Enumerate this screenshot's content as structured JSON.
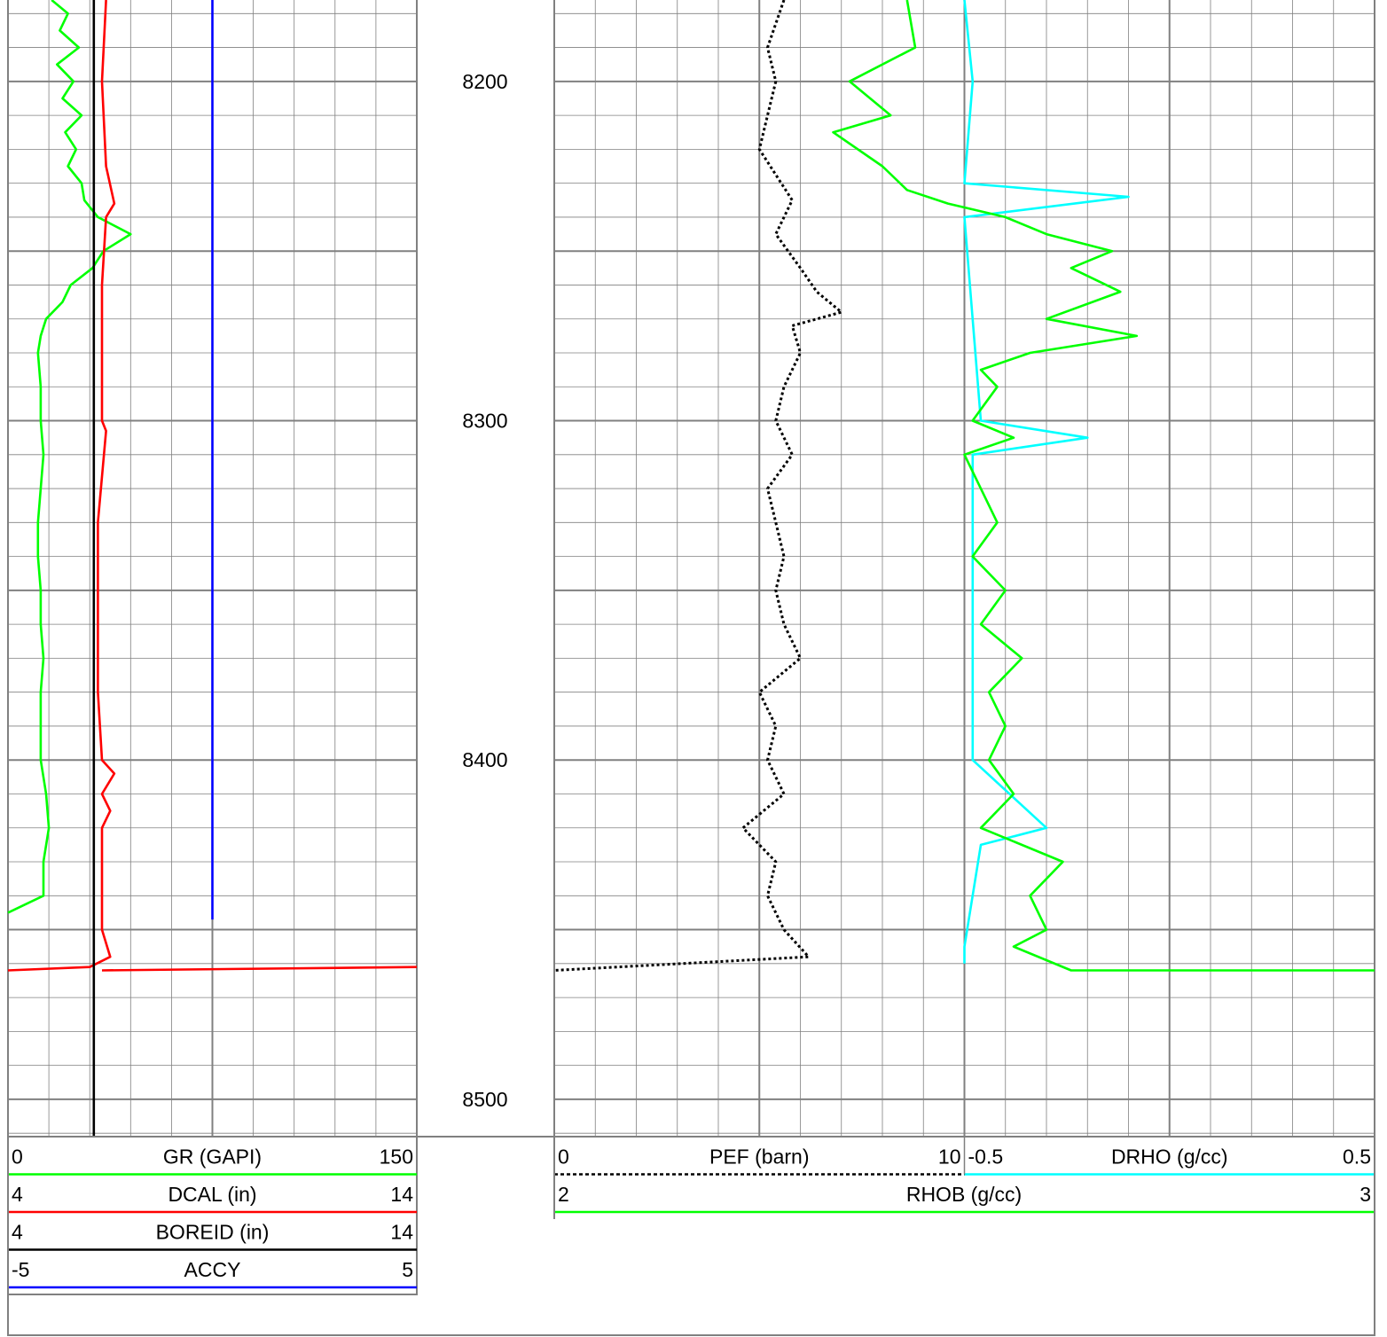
{
  "chart_data": {
    "type": "line",
    "title": "",
    "depth_axis": {
      "min": 8176,
      "max": 8511,
      "ticks": [
        8200,
        8300,
        8400,
        8500
      ],
      "major_step": 50,
      "minor_step": 10
    },
    "tracks": [
      {
        "name": "track1",
        "grid_divisions": 10,
        "curves": [
          {
            "mnemonic": "GR",
            "unit": "GAPI",
            "label": "GR (GAPI)",
            "min": 0,
            "max": 150,
            "min_label": "0",
            "max_label": "150",
            "color": "#00ff00",
            "style": "solid",
            "points": [
              [
                8176,
                16
              ],
              [
                8180,
                22
              ],
              [
                8185,
                19
              ],
              [
                8190,
                26
              ],
              [
                8195,
                18
              ],
              [
                8200,
                24
              ],
              [
                8205,
                20
              ],
              [
                8210,
                27
              ],
              [
                8215,
                21
              ],
              [
                8220,
                25
              ],
              [
                8225,
                22
              ],
              [
                8230,
                27
              ],
              [
                8235,
                28
              ],
              [
                8240,
                33
              ],
              [
                8245,
                45
              ],
              [
                8250,
                35
              ],
              [
                8255,
                31
              ],
              [
                8260,
                23
              ],
              [
                8265,
                20
              ],
              [
                8270,
                14
              ],
              [
                8275,
                12
              ],
              [
                8280,
                11
              ],
              [
                8290,
                12
              ],
              [
                8300,
                12
              ],
              [
                8310,
                13
              ],
              [
                8320,
                12
              ],
              [
                8330,
                11
              ],
              [
                8340,
                11
              ],
              [
                8350,
                12
              ],
              [
                8360,
                12
              ],
              [
                8370,
                13
              ],
              [
                8380,
                12
              ],
              [
                8390,
                12
              ],
              [
                8400,
                12
              ],
              [
                8410,
                14
              ],
              [
                8420,
                15
              ],
              [
                8430,
                13
              ],
              [
                8440,
                13
              ],
              [
                8445,
                0
              ]
            ]
          },
          {
            "mnemonic": "DCAL",
            "unit": "in",
            "label": "DCAL (in)",
            "min": 4,
            "max": 14,
            "min_label": "4",
            "max_label": "14",
            "color": "#ff0000",
            "style": "solid",
            "points": [
              [
                8176,
                6.4
              ],
              [
                8200,
                6.3
              ],
              [
                8225,
                6.4
              ],
              [
                8236,
                6.6
              ],
              [
                8240,
                6.4
              ],
              [
                8260,
                6.3
              ],
              [
                8300,
                6.3
              ],
              [
                8303,
                6.4
              ],
              [
                8330,
                6.2
              ],
              [
                8380,
                6.2
              ],
              [
                8400,
                6.3
              ],
              [
                8404,
                6.6
              ],
              [
                8410,
                6.3
              ],
              [
                8415,
                6.5
              ],
              [
                8420,
                6.3
              ],
              [
                8450,
                6.3
              ],
              [
                8458,
                6.5
              ],
              [
                8461,
                6.0
              ],
              [
                8462,
                4.0
              ]
            ],
            "points_2": [
              [
                8462,
                6.3
              ],
              [
                8461,
                14
              ]
            ]
          },
          {
            "mnemonic": "BOREID",
            "unit": "in",
            "label": "BOREID (in)",
            "min": 4,
            "max": 14,
            "min_label": "4",
            "max_label": "14",
            "color": "#000000",
            "style": "solid",
            "points": [
              [
                8176,
                6.1
              ],
              [
                8511,
                6.1
              ]
            ]
          },
          {
            "mnemonic": "ACCY",
            "unit": "",
            "label": "ACCY",
            "min": -5,
            "max": 5,
            "min_label": "-5",
            "max_label": "5",
            "color": "#0000ff",
            "style": "solid",
            "points": [
              [
                8176,
                0
              ],
              [
                8200,
                0
              ],
              [
                8250,
                0
              ],
              [
                8300,
                0
              ],
              [
                8350,
                0
              ],
              [
                8400,
                0
              ],
              [
                8447,
                0
              ]
            ]
          }
        ]
      },
      {
        "name": "track2",
        "grid_divisions": 20,
        "curves": [
          {
            "mnemonic": "PEF",
            "unit": "barn",
            "label": "PEF (barn)",
            "min": 0,
            "max": 10,
            "min_label": "0",
            "max_label": "10",
            "color": "#000000",
            "style": "dotted",
            "points": [
              [
                8176,
                2.8
              ],
              [
                8190,
                2.6
              ],
              [
                8200,
                2.7
              ],
              [
                8210,
                2.6
              ],
              [
                8220,
                2.5
              ],
              [
                8235,
                2.9
              ],
              [
                8245,
                2.7
              ],
              [
                8255,
                3.0
              ],
              [
                8262,
                3.2
              ],
              [
                8268,
                3.5
              ],
              [
                8272,
                2.9
              ],
              [
                8280,
                3.0
              ],
              [
                8290,
                2.8
              ],
              [
                8300,
                2.7
              ],
              [
                8310,
                2.9
              ],
              [
                8320,
                2.6
              ],
              [
                8330,
                2.7
              ],
              [
                8340,
                2.8
              ],
              [
                8350,
                2.7
              ],
              [
                8360,
                2.8
              ],
              [
                8370,
                3.0
              ],
              [
                8380,
                2.5
              ],
              [
                8390,
                2.7
              ],
              [
                8400,
                2.6
              ],
              [
                8410,
                2.8
              ],
              [
                8420,
                2.3
              ],
              [
                8430,
                2.7
              ],
              [
                8440,
                2.6
              ],
              [
                8450,
                2.8
              ],
              [
                8458,
                3.1
              ],
              [
                8462,
                0
              ]
            ]
          },
          {
            "mnemonic": "DRHO",
            "unit": "g/cc",
            "label": "DRHO (g/cc)",
            "min": -0.5,
            "max": 0.5,
            "min_label": "-0.5",
            "max_label": "0.5",
            "color": "#00ffff",
            "style": "solid",
            "points": [
              [
                8176,
                0.0
              ],
              [
                8200,
                0.01
              ],
              [
                8230,
                0.0
              ],
              [
                8234,
                0.2
              ],
              [
                8240,
                0.0
              ],
              [
                8300,
                0.02
              ],
              [
                8305,
                0.15
              ],
              [
                8310,
                0.01
              ],
              [
                8350,
                0.01
              ],
              [
                8400,
                0.01
              ],
              [
                8420,
                0.1
              ],
              [
                8425,
                0.02
              ],
              [
                8455,
                0.0
              ],
              [
                8460,
                0.0
              ]
            ]
          },
          {
            "mnemonic": "RHOB",
            "unit": "g/cc",
            "label": "RHOB (g/cc)",
            "min": 2,
            "max": 3,
            "min_label": "2",
            "max_label": "3",
            "color": "#00ff00",
            "style": "solid",
            "points": [
              [
                8176,
                2.43
              ],
              [
                8190,
                2.44
              ],
              [
                8200,
                2.36
              ],
              [
                8210,
                2.41
              ],
              [
                8215,
                2.34
              ],
              [
                8225,
                2.4
              ],
              [
                8232,
                2.43
              ],
              [
                8236,
                2.48
              ],
              [
                8240,
                2.55
              ],
              [
                8245,
                2.6
              ],
              [
                8250,
                2.68
              ],
              [
                8255,
                2.63
              ],
              [
                8262,
                2.69
              ],
              [
                8270,
                2.6
              ],
              [
                8275,
                2.71
              ],
              [
                8280,
                2.58
              ],
              [
                8285,
                2.52
              ],
              [
                8290,
                2.54
              ],
              [
                8300,
                2.51
              ],
              [
                8305,
                2.56
              ],
              [
                8310,
                2.5
              ],
              [
                8320,
                2.52
              ],
              [
                8330,
                2.54
              ],
              [
                8340,
                2.51
              ],
              [
                8350,
                2.55
              ],
              [
                8360,
                2.52
              ],
              [
                8370,
                2.57
              ],
              [
                8380,
                2.53
              ],
              [
                8390,
                2.55
              ],
              [
                8400,
                2.53
              ],
              [
                8410,
                2.56
              ],
              [
                8420,
                2.52
              ],
              [
                8430,
                2.62
              ],
              [
                8440,
                2.58
              ],
              [
                8450,
                2.6
              ],
              [
                8455,
                2.56
              ],
              [
                8462,
                2.63
              ],
              [
                8462,
                3.0
              ]
            ]
          }
        ]
      }
    ],
    "depth_labels": [
      "8200",
      "8300",
      "8400",
      "8500"
    ]
  },
  "headers": {
    "track1": [
      {
        "min": "0",
        "label": "GR (GAPI)",
        "max": "150",
        "color": "#00ff00",
        "style": "solid"
      },
      {
        "min": "4",
        "label": "DCAL (in)",
        "max": "14",
        "color": "#ff0000",
        "style": "solid"
      },
      {
        "min": "4",
        "label": "BOREID (in)",
        "max": "14",
        "color": "#000000",
        "style": "solid"
      },
      {
        "min": "-5",
        "label": "ACCY",
        "max": "5",
        "color": "#0000ff",
        "style": "solid"
      }
    ],
    "track2": [
      {
        "min": "0",
        "label": "PEF (barn)",
        "max": "10",
        "color": "#000000",
        "style": "dotted"
      },
      {
        "min": "-0.5",
        "label": "DRHO (g/cc)",
        "max": "0.5",
        "color": "#00ffff",
        "style": "solid"
      },
      {
        "min": "2",
        "label": "RHOB (g/cc)",
        "max": "3",
        "color": "#00ff00",
        "style": "solid"
      }
    ]
  }
}
